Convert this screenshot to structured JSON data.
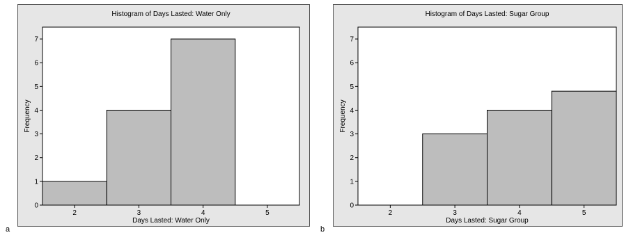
{
  "panels": [
    {
      "tag": "a"
    },
    {
      "tag": "b"
    }
  ],
  "chart_data": [
    {
      "type": "bar",
      "title": "Histogram of Days Lasted: Water Only",
      "xlabel": "Days Lasted: Water Only",
      "ylabel": "Frequency",
      "x_ticks": [
        2,
        3,
        4,
        5
      ],
      "y_ticks": [
        0,
        1,
        2,
        3,
        4,
        5,
        6,
        7
      ],
      "xlim": [
        1.5,
        5.5
      ],
      "ylim": [
        0,
        7.5
      ],
      "grid": false,
      "bins": [
        {
          "center": 2,
          "value": 1
        },
        {
          "center": 3,
          "value": 4
        },
        {
          "center": 4,
          "value": 7
        }
      ],
      "bar_color": "#bdbdbd",
      "plot_bg": "#ffffff",
      "panel_bg": "#e6e6e6"
    },
    {
      "type": "bar",
      "title": "Histogram of Days Lasted: Sugar Group",
      "xlabel": "Days Lasted: Sugar Group",
      "ylabel": "Frequency",
      "x_ticks": [
        2,
        3,
        4,
        5
      ],
      "y_ticks": [
        0,
        1,
        2,
        3,
        4,
        5,
        6,
        7
      ],
      "xlim": [
        1.5,
        5.5
      ],
      "ylim": [
        0,
        7.5
      ],
      "grid": false,
      "bins": [
        {
          "center": 3,
          "value": 3
        },
        {
          "center": 4,
          "value": 4
        },
        {
          "center": 5,
          "value": 4.8
        }
      ],
      "bar_color": "#bdbdbd",
      "plot_bg": "#ffffff",
      "panel_bg": "#e6e6e6"
    }
  ]
}
